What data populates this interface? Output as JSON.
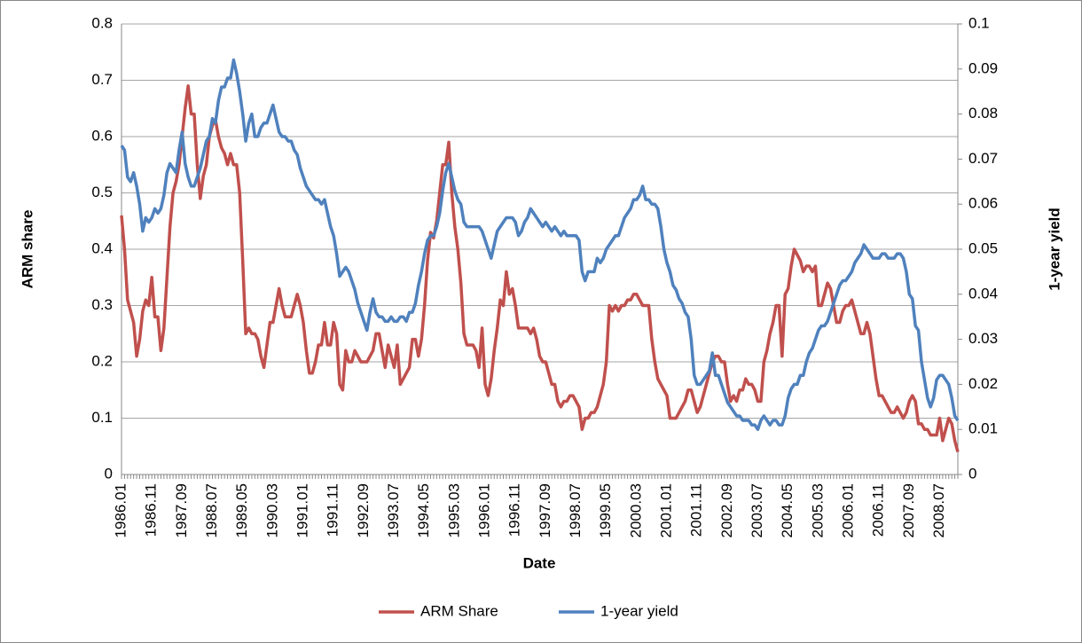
{
  "chart_data": {
    "type": "line",
    "x_label": "Date",
    "y_label": "ARM share",
    "y2_label": "1-year yield",
    "categories": [
      "1986.01",
      null,
      null,
      null,
      null,
      null,
      null,
      null,
      null,
      null,
      "1986.11",
      null,
      null,
      null,
      null,
      null,
      null,
      null,
      null,
      null,
      "1987.09",
      null,
      null,
      null,
      null,
      null,
      null,
      null,
      null,
      null,
      "1988.07",
      null,
      null,
      null,
      null,
      null,
      null,
      null,
      null,
      null,
      "1989.05",
      null,
      null,
      null,
      null,
      null,
      null,
      null,
      null,
      null,
      "1990.03",
      null,
      null,
      null,
      null,
      null,
      null,
      null,
      null,
      null,
      "1991.01",
      null,
      null,
      null,
      null,
      null,
      null,
      null,
      null,
      null,
      "1991.11",
      null,
      null,
      null,
      null,
      null,
      null,
      null,
      null,
      null,
      "1992.09",
      null,
      null,
      null,
      null,
      null,
      null,
      null,
      null,
      null,
      "1993.07",
      null,
      null,
      null,
      null,
      null,
      null,
      null,
      null,
      null,
      "1994.05",
      null,
      null,
      null,
      null,
      null,
      null,
      null,
      null,
      null,
      "1995.03",
      null,
      null,
      null,
      null,
      null,
      null,
      null,
      null,
      null,
      "1996.01",
      null,
      null,
      null,
      null,
      null,
      null,
      null,
      null,
      null,
      "1996.11",
      null,
      null,
      null,
      null,
      null,
      null,
      null,
      null,
      null,
      "1997.09",
      null,
      null,
      null,
      null,
      null,
      null,
      null,
      null,
      null,
      "1998.07",
      null,
      null,
      null,
      null,
      null,
      null,
      null,
      null,
      null,
      "1999.05",
      null,
      null,
      null,
      null,
      null,
      null,
      null,
      null,
      null,
      "2000.03",
      null,
      null,
      null,
      null,
      null,
      null,
      null,
      null,
      null,
      "2001.01",
      null,
      null,
      null,
      null,
      null,
      null,
      null,
      null,
      null,
      "2001.11",
      null,
      null,
      null,
      null,
      null,
      null,
      null,
      null,
      null,
      "2002.09",
      null,
      null,
      null,
      null,
      null,
      null,
      null,
      null,
      null,
      "2003.07",
      null,
      null,
      null,
      null,
      null,
      null,
      null,
      null,
      null,
      "2004.05",
      null,
      null,
      null,
      null,
      null,
      null,
      null,
      null,
      null,
      "2005.03",
      null,
      null,
      null,
      null,
      null,
      null,
      null,
      null,
      null,
      "2006.01",
      null,
      null,
      null,
      null,
      null,
      null,
      null,
      null,
      null,
      "2006.11",
      null,
      null,
      null,
      null,
      null,
      null,
      null,
      null,
      null,
      "2007.09",
      null,
      null,
      null,
      null,
      null,
      null,
      null,
      null,
      null,
      "2008.07",
      null,
      null,
      null,
      null,
      null,
      null
    ],
    "series": [
      {
        "name": "ARM Share",
        "color": "#c0504d",
        "axis": "y",
        "values": [
          0.46,
          0.4,
          0.31,
          0.29,
          0.27,
          0.21,
          0.24,
          0.29,
          0.31,
          0.3,
          0.35,
          0.28,
          0.28,
          0.22,
          0.26,
          0.35,
          0.44,
          0.5,
          0.52,
          0.55,
          0.6,
          0.65,
          0.69,
          0.64,
          0.64,
          0.55,
          0.49,
          0.53,
          0.55,
          0.6,
          0.62,
          0.63,
          0.6,
          0.58,
          0.57,
          0.55,
          0.57,
          0.55,
          0.55,
          0.5,
          0.38,
          0.25,
          0.26,
          0.25,
          0.25,
          0.24,
          0.21,
          0.19,
          0.23,
          0.27,
          0.27,
          0.3,
          0.33,
          0.3,
          0.28,
          0.28,
          0.28,
          0.3,
          0.32,
          0.3,
          0.27,
          0.22,
          0.18,
          0.18,
          0.2,
          0.23,
          0.23,
          0.27,
          0.23,
          0.23,
          0.27,
          0.25,
          0.16,
          0.15,
          0.22,
          0.2,
          0.2,
          0.22,
          0.21,
          0.2,
          0.2,
          0.2,
          0.21,
          0.22,
          0.25,
          0.25,
          0.22,
          0.19,
          0.23,
          0.21,
          0.19,
          0.23,
          0.16,
          0.17,
          0.18,
          0.19,
          0.24,
          0.24,
          0.21,
          0.24,
          0.3,
          0.38,
          0.43,
          0.42,
          0.45,
          0.5,
          0.55,
          0.55,
          0.59,
          0.5,
          0.44,
          0.4,
          0.34,
          0.25,
          0.23,
          0.23,
          0.23,
          0.22,
          0.19,
          0.26,
          0.16,
          0.14,
          0.17,
          0.22,
          0.26,
          0.31,
          0.3,
          0.36,
          0.32,
          0.33,
          0.3,
          0.26,
          0.26,
          0.26,
          0.26,
          0.25,
          0.26,
          0.24,
          0.21,
          0.2,
          0.2,
          0.18,
          0.16,
          0.16,
          0.13,
          0.12,
          0.13,
          0.13,
          0.14,
          0.14,
          0.13,
          0.12,
          0.08,
          0.1,
          0.1,
          0.11,
          0.11,
          0.12,
          0.14,
          0.16,
          0.2,
          0.3,
          0.29,
          0.3,
          0.29,
          0.3,
          0.3,
          0.31,
          0.31,
          0.32,
          0.32,
          0.31,
          0.3,
          0.3,
          0.3,
          0.24,
          0.2,
          0.17,
          0.16,
          0.15,
          0.14,
          0.1,
          0.1,
          0.1,
          0.11,
          0.12,
          0.13,
          0.15,
          0.15,
          0.13,
          0.11,
          0.12,
          0.14,
          0.16,
          0.18,
          0.2,
          0.21,
          0.21,
          0.2,
          0.2,
          0.16,
          0.13,
          0.14,
          0.13,
          0.15,
          0.15,
          0.17,
          0.16,
          0.16,
          0.15,
          0.13,
          0.13,
          0.2,
          0.22,
          0.25,
          0.27,
          0.3,
          0.3,
          0.21,
          0.32,
          0.33,
          0.37,
          0.4,
          0.39,
          0.38,
          0.36,
          0.37,
          0.37,
          0.36,
          0.37,
          0.3,
          0.3,
          0.32,
          0.34,
          0.33,
          0.3,
          0.27,
          0.27,
          0.29,
          0.3,
          0.3,
          0.31,
          0.29,
          0.27,
          0.25,
          0.25,
          0.27,
          0.25,
          0.21,
          0.17,
          0.14,
          0.14,
          0.13,
          0.12,
          0.11,
          0.11,
          0.12,
          0.11,
          0.1,
          0.11,
          0.13,
          0.14,
          0.13,
          0.09,
          0.09,
          0.08,
          0.08,
          0.07,
          0.07,
          0.07,
          0.1,
          0.06,
          0.08,
          0.1,
          0.09,
          0.06,
          0.04
        ]
      },
      {
        "name": "1-year yield",
        "color": "#4f81bd",
        "axis": "y2",
        "values": [
          0.073,
          0.072,
          0.066,
          0.065,
          0.067,
          0.064,
          0.06,
          0.054,
          0.057,
          0.056,
          0.057,
          0.059,
          0.058,
          0.059,
          0.062,
          0.067,
          0.069,
          0.068,
          0.067,
          0.072,
          0.076,
          0.069,
          0.066,
          0.064,
          0.064,
          0.066,
          0.068,
          0.071,
          0.074,
          0.075,
          0.079,
          0.078,
          0.083,
          0.086,
          0.086,
          0.088,
          0.088,
          0.092,
          0.089,
          0.085,
          0.08,
          0.074,
          0.078,
          0.08,
          0.075,
          0.075,
          0.077,
          0.078,
          0.078,
          0.08,
          0.082,
          0.079,
          0.076,
          0.075,
          0.075,
          0.074,
          0.074,
          0.072,
          0.071,
          0.068,
          0.066,
          0.064,
          0.063,
          0.062,
          0.061,
          0.061,
          0.06,
          0.061,
          0.058,
          0.055,
          0.053,
          0.049,
          0.044,
          0.045,
          0.046,
          0.045,
          0.043,
          0.041,
          0.038,
          0.036,
          0.034,
          0.032,
          0.036,
          0.039,
          0.036,
          0.035,
          0.035,
          0.034,
          0.034,
          0.035,
          0.034,
          0.034,
          0.035,
          0.035,
          0.034,
          0.036,
          0.036,
          0.038,
          0.042,
          0.045,
          0.049,
          0.052,
          0.053,
          0.053,
          0.055,
          0.058,
          0.063,
          0.067,
          0.069,
          0.066,
          0.063,
          0.061,
          0.06,
          0.056,
          0.055,
          0.055,
          0.055,
          0.055,
          0.055,
          0.054,
          0.052,
          0.05,
          0.048,
          0.051,
          0.054,
          0.055,
          0.056,
          0.057,
          0.057,
          0.057,
          0.056,
          0.053,
          0.054,
          0.056,
          0.057,
          0.059,
          0.058,
          0.057,
          0.056,
          0.055,
          0.056,
          0.055,
          0.054,
          0.055,
          0.054,
          0.053,
          0.054,
          0.053,
          0.053,
          0.053,
          0.053,
          0.052,
          0.045,
          0.043,
          0.045,
          0.045,
          0.045,
          0.048,
          0.047,
          0.048,
          0.05,
          0.051,
          0.052,
          0.053,
          0.053,
          0.055,
          0.057,
          0.058,
          0.059,
          0.061,
          0.061,
          0.062,
          0.064,
          0.061,
          0.061,
          0.06,
          0.06,
          0.059,
          0.055,
          0.05,
          0.047,
          0.045,
          0.042,
          0.041,
          0.039,
          0.038,
          0.036,
          0.035,
          0.03,
          0.022,
          0.02,
          0.02,
          0.021,
          0.022,
          0.023,
          0.027,
          0.022,
          0.022,
          0.02,
          0.018,
          0.016,
          0.015,
          0.014,
          0.013,
          0.013,
          0.012,
          0.012,
          0.012,
          0.011,
          0.011,
          0.01,
          0.012,
          0.013,
          0.012,
          0.011,
          0.012,
          0.012,
          0.011,
          0.011,
          0.013,
          0.017,
          0.019,
          0.02,
          0.02,
          0.022,
          0.022,
          0.025,
          0.027,
          0.028,
          0.03,
          0.032,
          0.033,
          0.033,
          0.034,
          0.036,
          0.038,
          0.04,
          0.042,
          0.043,
          0.043,
          0.044,
          0.045,
          0.047,
          0.048,
          0.049,
          0.051,
          0.05,
          0.049,
          0.048,
          0.048,
          0.048,
          0.049,
          0.049,
          0.048,
          0.048,
          0.048,
          0.049,
          0.049,
          0.048,
          0.045,
          0.04,
          0.039,
          0.033,
          0.032,
          0.025,
          0.021,
          0.017,
          0.015,
          0.017,
          0.021,
          0.022,
          0.022,
          0.021,
          0.02,
          0.017,
          0.013,
          0.012
        ]
      }
    ],
    "ylim": [
      0,
      0.8
    ],
    "yticks": [
      0,
      0.1,
      0.2,
      0.3,
      0.4,
      0.5,
      0.6,
      0.7,
      0.8
    ],
    "y2lim": [
      0,
      0.1
    ],
    "y2ticks": [
      0,
      0.01,
      0.02,
      0.03,
      0.04,
      0.05,
      0.06,
      0.07,
      0.08,
      0.09,
      0.1
    ],
    "grid": true,
    "legend": "bottom"
  }
}
